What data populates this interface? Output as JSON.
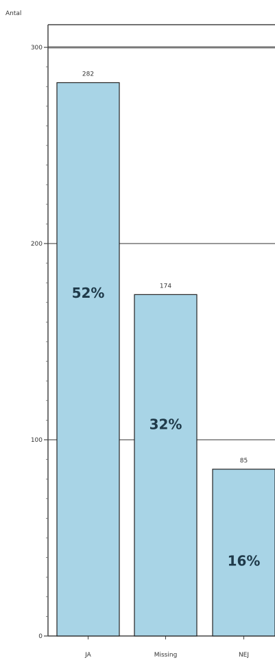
{
  "chart_data": {
    "type": "bar",
    "ylabel": "Antal",
    "categories": [
      "JA",
      "Missing",
      "NEJ"
    ],
    "values": [
      282,
      174,
      85
    ],
    "value_labels": [
      "282",
      "174",
      "85"
    ],
    "percent_labels": [
      "52%",
      "32%",
      "16%"
    ],
    "ylim": [
      0,
      310
    ],
    "yticks": [
      0,
      100,
      200,
      300
    ],
    "ytick_labels": [
      "0",
      "100",
      "200",
      "300"
    ],
    "grid": "horizontal major lines at 100, 200, 300",
    "bar_color": "#a8d4e6",
    "bar_edge_color": "#222222",
    "grid_color": "#777777"
  }
}
